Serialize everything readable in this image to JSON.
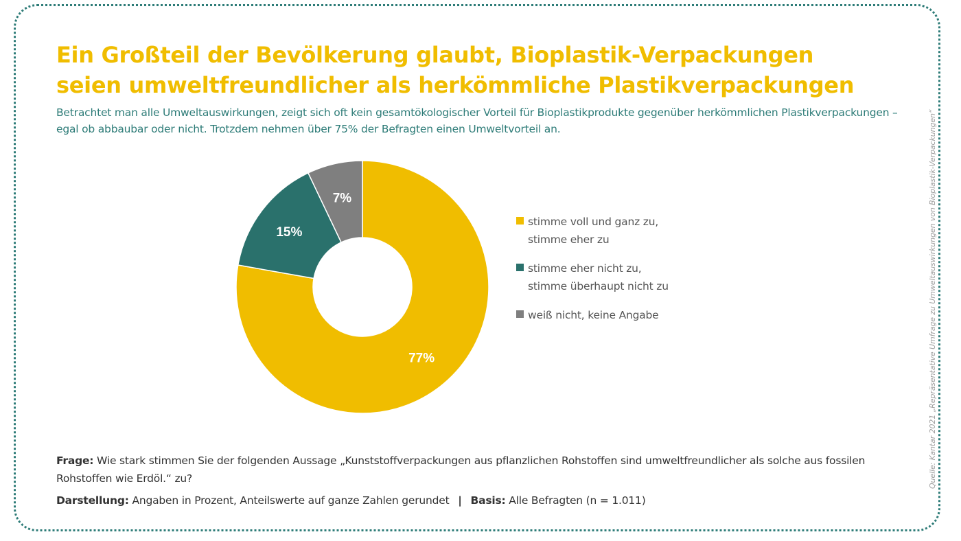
{
  "title": "Ein Großteil der Bevölkerung glaubt, Bioplastik-Verpackungen seien umweltfreundlicher als herkömmliche Plastikverpackungen",
  "subtitle": "Betrachtet man alle Umweltauswirkungen, zeigt sich oft kein gesamtökologischer Vorteil für Bioplastikprodukte gegenüber herkömmlichen Plastikverpackungen – egal ob abbaubar oder nicht. Trotzdem nehmen über 75% der Befragten einen Umweltvorteil an.",
  "chart_data": {
    "type": "pie",
    "donut": true,
    "categories": [
      "stimme voll und ganz zu, stimme eher zu",
      "stimme eher nicht zu, stimme überhaupt nicht zu",
      "weiß nicht, keine Angabe"
    ],
    "values": [
      77,
      15,
      7
    ],
    "value_labels": [
      "77%",
      "15%",
      "7%"
    ],
    "colors": [
      "#f0bd00",
      "#2a716c",
      "#7f7f7f"
    ],
    "legend_placement": "right",
    "legend": [
      {
        "line1": "stimme voll und ganz zu,",
        "line2": "stimme eher zu"
      },
      {
        "line1": "stimme eher nicht zu,",
        "line2": "stimme überhaupt nicht zu"
      },
      {
        "line1": "weiß nicht, keine Angabe",
        "line2": ""
      }
    ]
  },
  "footer": {
    "frage_label": "Frage:",
    "frage_text": "Wie stark stimmen Sie der folgenden Aussage „Kunststoffverpackungen aus pflanzlichen Rohstoffen sind umweltfreundlicher als solche aus fossilen Rohstoffen wie Erdöl.“ zu?",
    "darstellung_label": "Darstellung:",
    "darstellung_text": "Angaben in Prozent, Anteilswerte auf ganze Zahlen gerundet",
    "separator": "|",
    "basis_label": "Basis:",
    "basis_text": "Alle Befragten (n = 1.011)"
  },
  "source": "Quelle: Kantar 2021 „Repräsentative Umfrage zu Umweltauswirkungen von Bioplastik-Verpackungen“",
  "colors": {
    "title": "#f0bd00",
    "accent": "#2e7c78",
    "frame": "#2e7c78"
  }
}
